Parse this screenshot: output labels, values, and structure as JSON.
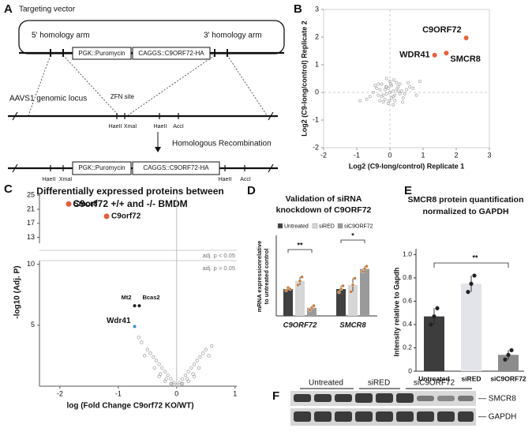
{
  "panel_labels": [
    "A",
    "B",
    "C",
    "D",
    "E",
    "F"
  ],
  "diagram": {
    "title": "Targeting vector",
    "vector": {
      "left_arm": "5' homology arm",
      "right_arm": "3' homology arm",
      "cassettes": [
        "PGK::Puromycin",
        "CAGGS::C9ORF72-HA"
      ]
    },
    "locus": {
      "name": "AAVS1 genomic locus",
      "site": "ZFN site",
      "sites": [
        "HaeII",
        "XmaI",
        "HaeII",
        "AccI"
      ]
    },
    "step": "Homologous Recombination",
    "result": {
      "cassettes": [
        "PGK::Puromycin",
        "CAGGS::C9ORF72-HA"
      ],
      "sites": [
        "HaeII",
        "XmaI",
        "HaeII",
        "AccI"
      ]
    }
  },
  "chart_data": [
    {
      "type": "scatter",
      "xlabel": "Log2 (C9-long/control) Replicate 1",
      "ylabel": "Log2 (C9-long/control) Replicate 2",
      "xlim": [
        -2,
        3
      ],
      "ylim": [
        -2,
        3
      ],
      "xticks": [
        -2,
        -1,
        0,
        1,
        2,
        3
      ],
      "yticks": [
        -2,
        -1,
        0,
        1,
        2,
        3
      ],
      "background": {
        "color": "#a8a8a8",
        "x": [
          -0.3,
          -0.2,
          -0.1,
          0,
          0.1,
          0.2,
          0.3,
          -0.25,
          -0.15,
          -0.05,
          0.05,
          0.15,
          0.25,
          -0.35,
          0.35,
          -0.4,
          0.4,
          -0.5,
          0.5,
          -0.2,
          0.2,
          0,
          -0.1,
          0.1,
          -0.3,
          0.3,
          -0.6,
          0.6,
          -0.05,
          0.05,
          -0.45,
          0.45,
          -0.15,
          0.15,
          0.7,
          -0.7,
          0.02,
          -0.02,
          0.12,
          -0.12,
          0.8,
          -0.9,
          0.55,
          0.9,
          -0.35,
          0.38,
          0.25,
          -0.25,
          0.1,
          -0.1
        ],
        "y": [
          0.1,
          -0.1,
          0.2,
          0,
          -0.15,
          0.12,
          -0.05,
          0.3,
          -0.25,
          0.15,
          0.25,
          -0.3,
          0.2,
          -0.1,
          0.05,
          0.15,
          -0.2,
          0,
          0.1,
          -0.35,
          0.35,
          0.4,
          -0.05,
          0.05,
          -0.3,
          0.3,
          -0.15,
          0.2,
          -0.4,
          -0.2,
          0.25,
          -0.05,
          0.1,
          -0.1,
          0.15,
          -0.25,
          0.3,
          -0.3,
          0.45,
          0.2,
          -0.1,
          -0.3,
          0.35,
          0.4,
          0.3,
          -0.35,
          0.05,
          -0.15,
          -0.45,
          0.5
        ]
      },
      "highlights": [
        {
          "label": "C9ORF72",
          "color": "#e8613c",
          "x": 2.3,
          "y": 1.97
        },
        {
          "label": "WDR41",
          "color": "#e8613c",
          "x": 1.35,
          "y": 1.35
        },
        {
          "label": "SMCR8",
          "color": "#e8613c",
          "x": 1.7,
          "y": 1.42
        }
      ]
    },
    {
      "type": "volcano",
      "title": [
        "Differentially expressed proteins between",
        "C9orf72 +/+ and -/- BMDM"
      ],
      "xlabel": "log (Fold Change C9orf72 KO/WT)",
      "ylabel": "-log10 (Adj. P)",
      "xlim": [
        -2.35,
        1.03
      ],
      "ylim": [
        0,
        10.3
      ],
      "ylim_upper": [
        13,
        25.5
      ],
      "xticks": [
        -2,
        -1,
        0,
        1
      ],
      "yticks": [
        5,
        10
      ],
      "yticks_upper": [
        13,
        17,
        21,
        25
      ],
      "annotations": [
        "adj. p < 0.05",
        "adj. p > 0.05"
      ],
      "background": {
        "color": "#9a9a9a",
        "x": [
          -0.6,
          -0.5,
          -0.45,
          -0.4,
          -0.35,
          -0.3,
          -0.25,
          -0.2,
          -0.15,
          -0.1,
          -0.05,
          0,
          0.05,
          0.1,
          0.15,
          0.2,
          0.25,
          0.3,
          0.35,
          0.4,
          0.45,
          0.5,
          -0.55,
          -0.38,
          -0.28,
          -0.18,
          -0.08,
          0.08,
          0.18,
          0.28,
          0.38,
          0.55,
          -0.3,
          -0.2,
          -0.1,
          0.1,
          0.2,
          0.3,
          -0.65,
          0.6
        ],
        "y": [
          3.6,
          3.0,
          2.7,
          2.4,
          2.1,
          1.8,
          1.5,
          1.2,
          0.9,
          0.6,
          0.3,
          0.1,
          0.3,
          0.6,
          0.9,
          1.2,
          1.5,
          1.8,
          2.1,
          2.4,
          2.7,
          3.0,
          2.5,
          1.5,
          1.0,
          0.6,
          0.2,
          0.2,
          0.6,
          1.0,
          1.5,
          2.5,
          0.8,
          0.4,
          0.2,
          0.2,
          0.4,
          0.8,
          4.0,
          3.3
        ]
      },
      "highlights": [
        {
          "label": "Smcr8",
          "color": "#e0603a",
          "x": -1.85,
          "y": 22.5
        },
        {
          "label": "C9orf72",
          "color": "#e0603a",
          "x": -1.2,
          "y": 19
        },
        {
          "label": "Mt2",
          "color": "#222222",
          "x": -0.72,
          "y": 6.6
        },
        {
          "label": "Bcas2",
          "color": "#222222",
          "x": -0.64,
          "y": 6.6
        },
        {
          "label": "Wdr41",
          "color": "#3a8fd0",
          "x": -0.72,
          "y": 4.9
        }
      ]
    },
    {
      "type": "grouped_bar",
      "title": [
        "Validation of siRNA",
        "knockdown of C9ORF72"
      ],
      "ylabel": [
        "mRNA expressionrelative",
        "to untreated control"
      ],
      "categories": [
        "C9ORF72",
        "SMCR8"
      ],
      "ylim": [
        0,
        3
      ],
      "series": [
        {
          "name": "Untreated",
          "color": "#404040",
          "values": [
            1,
            1
          ],
          "errors": [
            0.08,
            0.12
          ],
          "replicates": [
            [
              0.95,
              1.05,
              1.0
            ],
            [
              0.88,
              1.0,
              1.12
            ]
          ]
        },
        {
          "name": "siRED",
          "color": "#d6d6d6",
          "values": [
            1.3,
            1.15
          ],
          "errors": [
            0.15,
            0.25
          ],
          "replicates": [
            [
              1.15,
              1.3,
              1.45
            ],
            [
              0.9,
              1.15,
              1.4
            ]
          ]
        },
        {
          "name": "siC9ORF72",
          "color": "#9a9a9a",
          "values": [
            0.3,
            1.75
          ],
          "errors": [
            0.08,
            0.1
          ],
          "replicates": [
            [
              0.22,
              0.3,
              0.38
            ],
            [
              1.65,
              1.75,
              1.85
            ]
          ]
        }
      ],
      "significance": [
        "**",
        "*"
      ]
    },
    {
      "type": "bar",
      "title": [
        "SMCR8 protein quantification",
        "normalized to GAPDH"
      ],
      "ylabel": "Intensity relative to Gapdh",
      "categories": [
        "Untreated",
        "siRED",
        "siC9ORF72"
      ],
      "values": [
        0.47,
        0.75,
        0.14
      ],
      "errors": [
        0.07,
        0.07,
        0.04
      ],
      "replicates": [
        [
          0.4,
          0.47,
          0.54
        ],
        [
          0.68,
          0.75,
          0.82
        ],
        [
          0.1,
          0.14,
          0.18
        ]
      ],
      "colors": [
        "#3d3d3d",
        "#e3e3ea",
        "#8c8c8c"
      ],
      "ylim": [
        0,
        1.05
      ],
      "yticks": [
        0,
        0.2,
        0.4,
        0.6,
        0.8,
        {
          "value": 1,
          "label": "1.0"
        }
      ],
      "significance": "**"
    }
  ],
  "blot": {
    "groups": [
      "Untreated",
      "siRED",
      "siC9ORF72"
    ],
    "bands": [
      "— SMCR8",
      "— GAPDH"
    ]
  }
}
